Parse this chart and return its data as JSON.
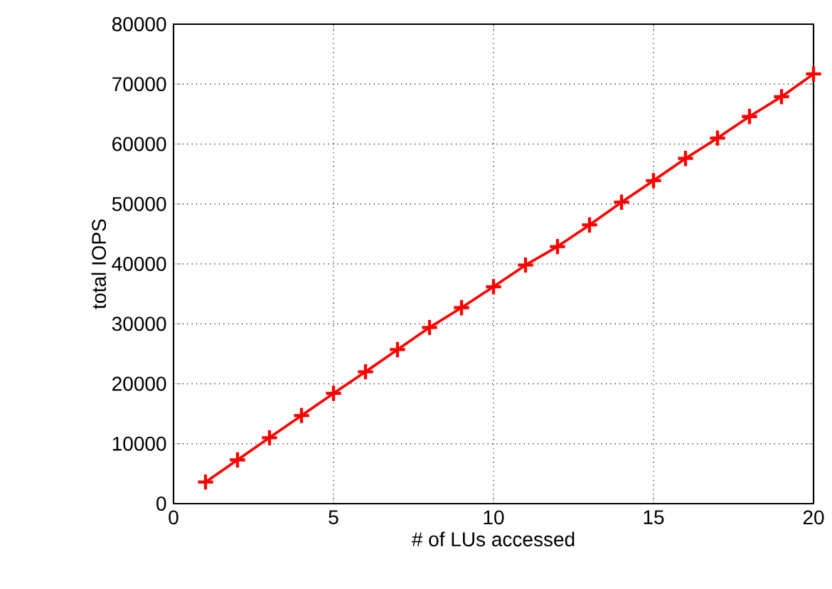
{
  "chart_data": {
    "type": "line",
    "xlabel": "# of LUs accessed",
    "ylabel": "total IOPS",
    "x": [
      1,
      2,
      3,
      4,
      5,
      6,
      7,
      8,
      9,
      10,
      11,
      12,
      13,
      14,
      15,
      16,
      17,
      18,
      19,
      20
    ],
    "series": [
      {
        "color": "#ff0000",
        "values": [
          3600,
          7300,
          11000,
          14700,
          18400,
          22000,
          25700,
          29400,
          32700,
          36200,
          39800,
          42900,
          46500,
          50300,
          53900,
          57600,
          61000,
          64600,
          67900,
          71700
        ]
      }
    ],
    "xlim": [
      0,
      20
    ],
    "xticks": [
      0,
      5,
      10,
      15,
      20
    ],
    "ylim": [
      0,
      80000
    ],
    "yticks": [
      0,
      10000,
      20000,
      30000,
      40000,
      50000,
      60000,
      70000,
      80000
    ],
    "grid": true,
    "marker": "cross",
    "line_style": "solid"
  }
}
